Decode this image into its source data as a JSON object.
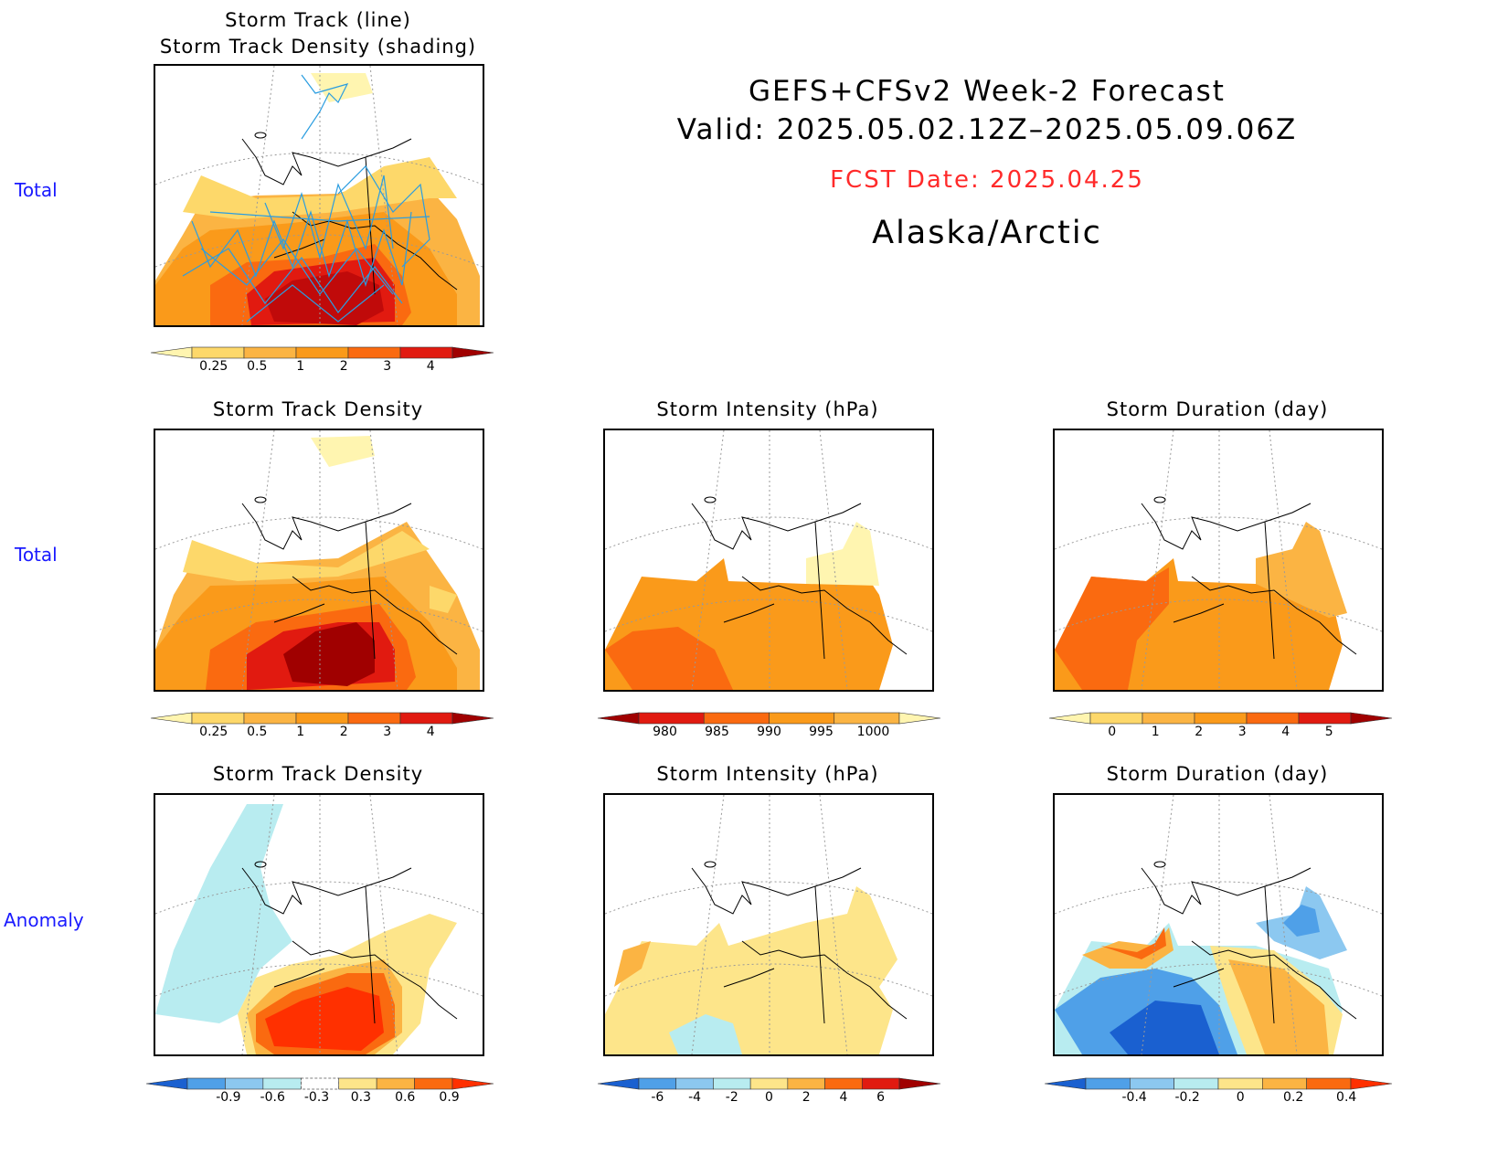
{
  "header": {
    "line1": "GEFS+CFSv2 Week-2 Forecast",
    "line2": "Valid: 2025.05.02.12Z–2025.05.09.06Z",
    "fcst_date": "FCST Date: 2025.04.25",
    "region": "Alaska/Arctic"
  },
  "row_labels": {
    "row1": "Total",
    "row2": "Total",
    "row3": "Anomaly"
  },
  "panels": {
    "track": {
      "title1": "Storm Track (line)",
      "title2": "Storm Track Density (shading)"
    },
    "density_total": {
      "title": "Storm Track Density"
    },
    "intensity_total": {
      "title": "Storm Intensity (hPa)"
    },
    "duration_total": {
      "title": "Storm Duration (day)"
    },
    "density_anom": {
      "title": "Storm Track Density"
    },
    "intensity_anom": {
      "title": "Storm Intensity (hPa)"
    },
    "duration_anom": {
      "title": "Storm Duration (day)"
    }
  },
  "colorbars": {
    "density_total": {
      "labels": [
        "0.25",
        "0.5",
        "1",
        "2",
        "3",
        "4"
      ],
      "colors": [
        "#fff5b0",
        "#fdd86a",
        "#fbb443",
        "#fa9a1a",
        "#fa6a10",
        "#e11a10",
        "#a00000"
      ]
    },
    "intensity_total": {
      "labels": [
        "980",
        "985",
        "990",
        "995",
        "1000"
      ],
      "colors": [
        "#a00000",
        "#e11a10",
        "#fa6a10",
        "#fa9a1a",
        "#fbb443",
        "#fff5b0"
      ]
    },
    "duration_total": {
      "labels": [
        "0",
        "1",
        "2",
        "3",
        "4",
        "5"
      ],
      "colors": [
        "#fff5b0",
        "#fdd86a",
        "#fbb443",
        "#fa9a1a",
        "#fa6a10",
        "#e11a10",
        "#a00000"
      ]
    },
    "density_anom": {
      "labels": [
        "-0.9",
        "-0.6",
        "-0.3",
        "0.3",
        "0.6",
        "0.9"
      ],
      "colors": [
        "#1a60d0",
        "#4fa0e8",
        "#8cc8f0",
        "#b8ecf0",
        "#ffffff",
        "#fde58a",
        "#fbb443",
        "#fa6a10",
        "#ff3000"
      ]
    },
    "intensity_anom": {
      "labels": [
        "-6",
        "-4",
        "-2",
        "0",
        "2",
        "4",
        "6"
      ],
      "colors": [
        "#1a60d0",
        "#4fa0e8",
        "#8cc8f0",
        "#b8ecf0",
        "#fde58a",
        "#fbb443",
        "#fa6a10",
        "#e11a10",
        "#a00000"
      ]
    },
    "duration_anom": {
      "labels": [
        "-0.4",
        "-0.2",
        "0",
        "0.2",
        "0.4"
      ],
      "colors": [
        "#1a60d0",
        "#4fa0e8",
        "#8cc8f0",
        "#b8ecf0",
        "#fde58a",
        "#fbb443",
        "#fa6a10",
        "#ff3000"
      ]
    }
  }
}
